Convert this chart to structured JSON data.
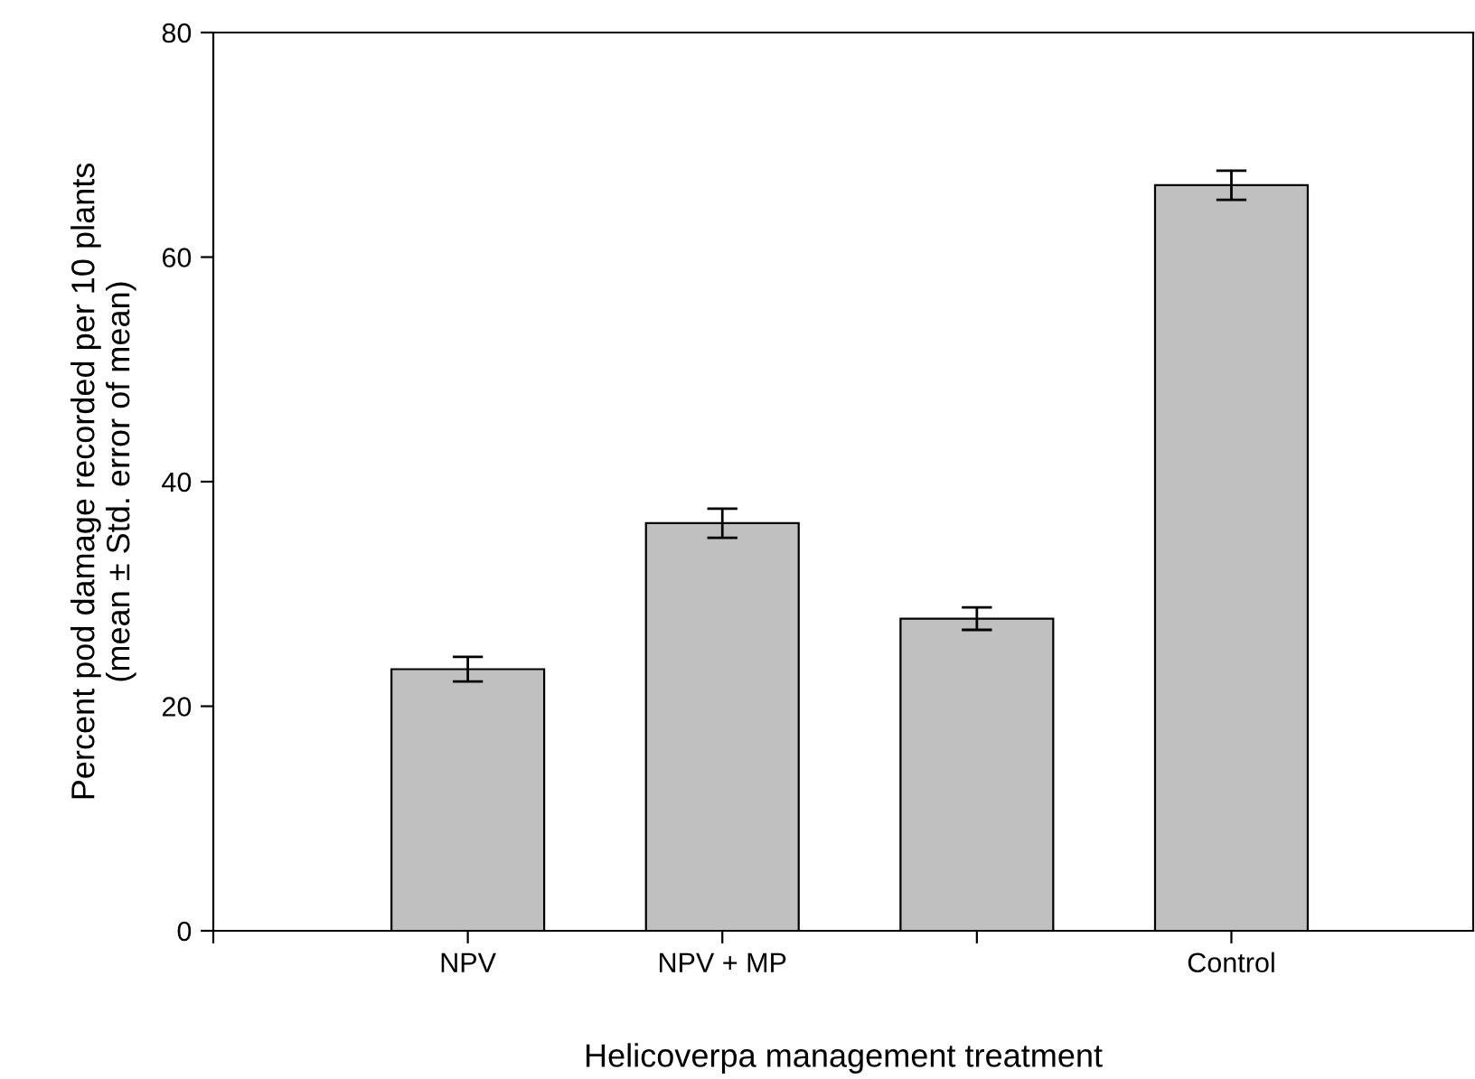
{
  "chart_data": {
    "type": "bar",
    "xlabel": "Helicoverpa management treatment",
    "ylabel": "Percent pod damage recorded per 10 plants\n(mean ± Std. error of mean)",
    "categories": [
      null,
      "NPV",
      "NPV + MP",
      null,
      "Control"
    ],
    "values": [
      null,
      23.3,
      36.3,
      27.8,
      66.4
    ],
    "errors": [
      null,
      1.1,
      1.3,
      1.0,
      1.3
    ],
    "color": "#c0c0c0",
    "ylim": [
      0,
      80
    ],
    "yticks": [
      0,
      20,
      40,
      60,
      80
    ],
    "grid": false
  }
}
